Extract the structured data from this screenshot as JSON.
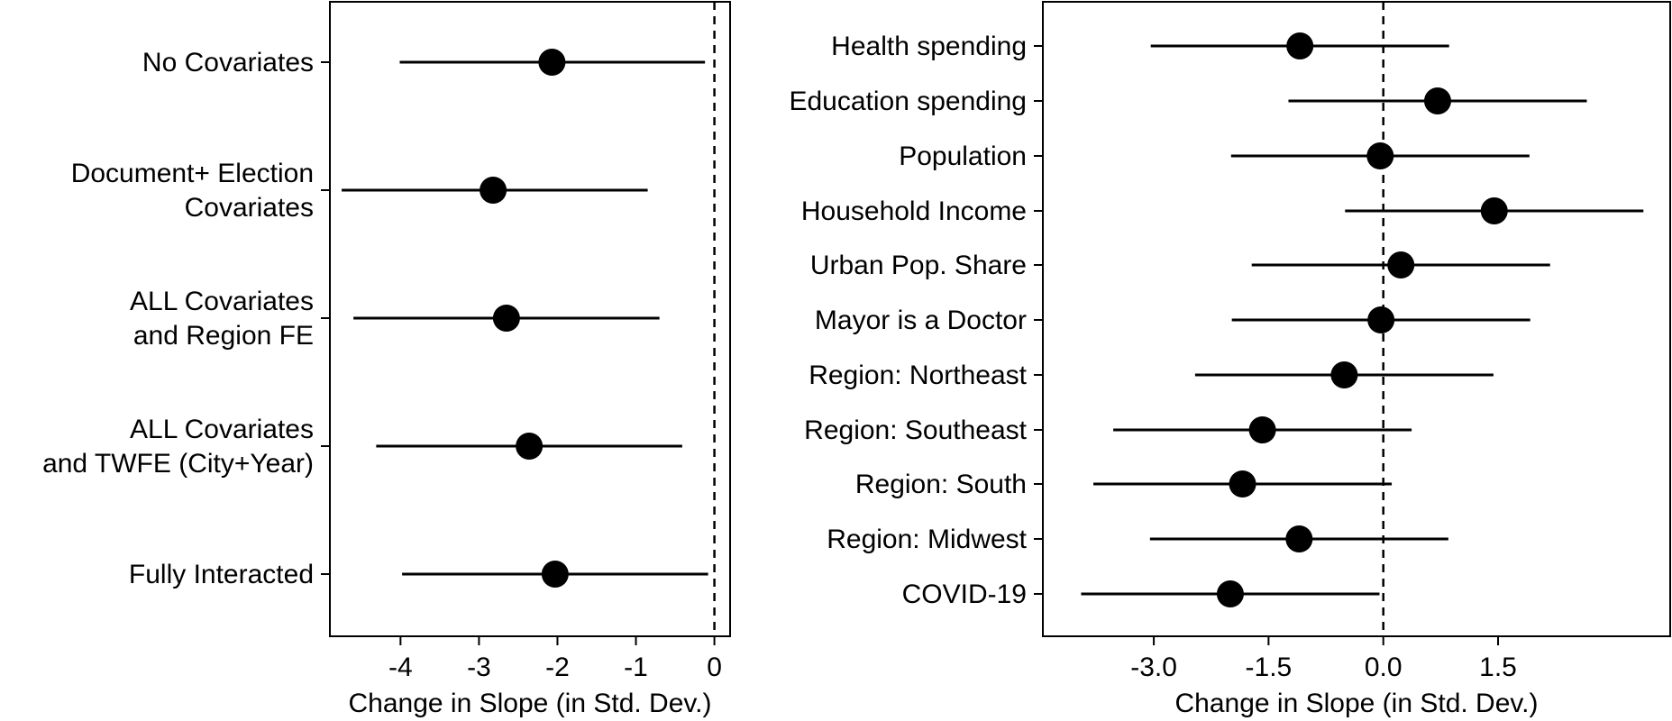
{
  "chart_data": [
    {
      "type": "coefficient-plot",
      "xlabel": "Change in Slope (in Std. Dev.)",
      "xlim": [
        -4.9,
        0.2
      ],
      "xticks": [
        -4,
        -3,
        -2,
        -1,
        0
      ],
      "tick_labels": [
        "-4",
        "-3",
        "-2",
        "-1",
        "0"
      ],
      "reference_line": 0,
      "rows": [
        {
          "label": [
            "No Covariates"
          ],
          "estimate": -2.07,
          "lower": -4.01,
          "upper": -0.12
        },
        {
          "label": [
            "Document+ Election",
            "Covariates"
          ],
          "estimate": -2.82,
          "lower": -4.75,
          "upper": -0.85
        },
        {
          "label": [
            "ALL Covariates",
            "and Region FE"
          ],
          "estimate": -2.65,
          "lower": -4.6,
          "upper": -0.7
        },
        {
          "label": [
            "ALL Covariates",
            "and TWFE (City+Year)"
          ],
          "estimate": -2.36,
          "lower": -4.31,
          "upper": -0.41
        },
        {
          "label": [
            "Fully Interacted"
          ],
          "estimate": -2.03,
          "lower": -3.98,
          "upper": -0.08
        }
      ]
    },
    {
      "type": "coefficient-plot",
      "xlabel": "Change in Slope (in Std. Dev.)",
      "xlim": [
        -4.45,
        3.75
      ],
      "xticks": [
        -3.0,
        -1.5,
        0.0,
        1.5
      ],
      "tick_labels": [
        "-3.0",
        "-1.5",
        "0.0",
        "1.5"
      ],
      "reference_line": 0,
      "rows": [
        {
          "label": [
            "Health spending"
          ],
          "estimate": -1.09,
          "lower": -3.04,
          "upper": 0.86
        },
        {
          "label": [
            "Education spending"
          ],
          "estimate": 0.71,
          "lower": -1.24,
          "upper": 2.66
        },
        {
          "label": [
            "Population"
          ],
          "estimate": -0.04,
          "lower": -1.99,
          "upper": 1.91
        },
        {
          "label": [
            "Household Income"
          ],
          "estimate": 1.45,
          "lower": -0.5,
          "upper": 3.4
        },
        {
          "label": [
            "Urban Pop. Share"
          ],
          "estimate": 0.23,
          "lower": -1.72,
          "upper": 2.18
        },
        {
          "label": [
            "Mayor is a Doctor"
          ],
          "estimate": -0.03,
          "lower": -1.98,
          "upper": 1.92
        },
        {
          "label": [
            "Region: Northeast"
          ],
          "estimate": -0.51,
          "lower": -2.46,
          "upper": 1.44
        },
        {
          "label": [
            "Region: Southeast"
          ],
          "estimate": -1.58,
          "lower": -3.53,
          "upper": 0.37
        },
        {
          "label": [
            "Region: South"
          ],
          "estimate": -1.84,
          "lower": -3.79,
          "upper": 0.11
        },
        {
          "label": [
            "Region: Midwest"
          ],
          "estimate": -1.1,
          "lower": -3.05,
          "upper": 0.85
        },
        {
          "label": [
            "COVID-19"
          ],
          "estimate": -2.0,
          "lower": -3.95,
          "upper": -0.05
        }
      ]
    }
  ]
}
